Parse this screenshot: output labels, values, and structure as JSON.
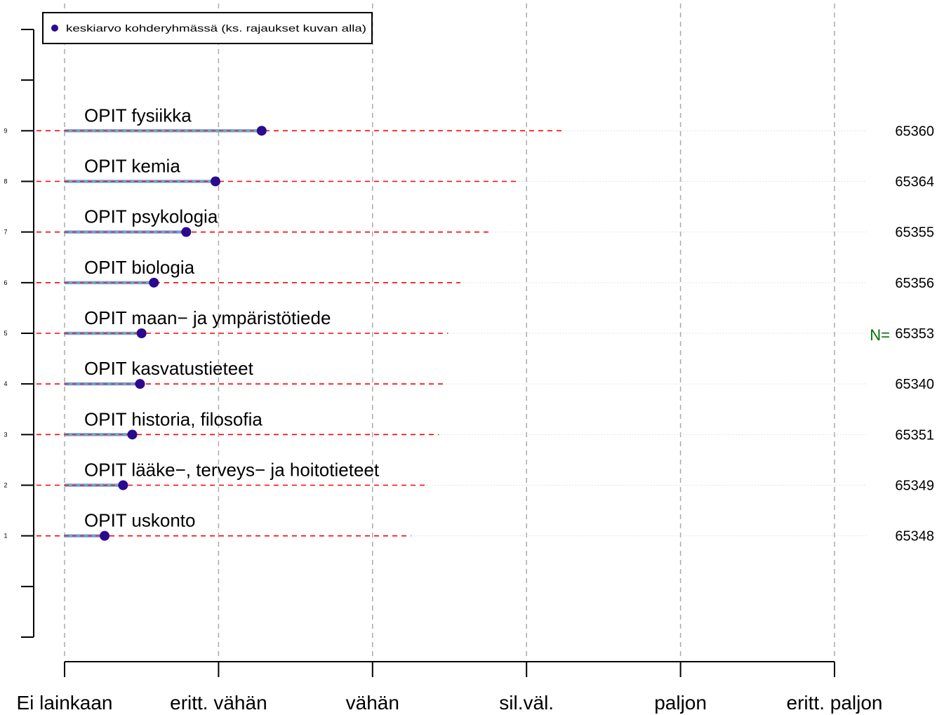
{
  "chart_data": {
    "type": "scatter",
    "legend": {
      "label": "keskiarvo kohderyhmässä (ks. rajaukset kuvan alla)",
      "position": "top-left",
      "marker_color": "#2b0a8f"
    },
    "x_axis": {
      "ticks": [
        0,
        1,
        2,
        3,
        4,
        5
      ],
      "tick_labels": [
        "Ei lainkaan",
        "eritt. vähän",
        "vähän",
        "sil.väl.",
        "paljon",
        "eritt. paljon"
      ],
      "range": [
        0,
        5
      ]
    },
    "y_axis": {
      "ticks": [
        1,
        2,
        3,
        4,
        5,
        6,
        7,
        8,
        9
      ],
      "tick_labels": [
        "1",
        "2",
        "3",
        "4",
        "5",
        "6",
        "7",
        "8",
        "9"
      ],
      "range": [
        -1,
        11
      ]
    },
    "grid": "vertical dashed",
    "n_label": "N=",
    "categories": [
      {
        "y": 9,
        "label": "OPIT fysiikka",
        "mean": 1.28,
        "range_end": 3.24,
        "n": "65360"
      },
      {
        "y": 8,
        "label": "OPIT kemia",
        "mean": 0.98,
        "range_end": 2.95,
        "n": "65364"
      },
      {
        "y": 7,
        "label": "OPIT psykologia",
        "mean": 0.79,
        "range_end": 2.78,
        "n": "65355"
      },
      {
        "y": 6,
        "label": "OPIT biologia",
        "mean": 0.58,
        "range_end": 2.57,
        "n": "65356"
      },
      {
        "y": 5,
        "label": "OPIT maan− ja ympäristötiede",
        "mean": 0.5,
        "range_end": 2.49,
        "n": "65353"
      },
      {
        "y": 4,
        "label": "OPIT kasvatustieteet",
        "mean": 0.49,
        "range_end": 2.48,
        "n": "65340"
      },
      {
        "y": 3,
        "label": "OPIT historia, filosofia",
        "mean": 0.44,
        "range_end": 2.43,
        "n": "65351"
      },
      {
        "y": 2,
        "label": "OPIT lääke−, terveys− ja hoitotieteet",
        "mean": 0.38,
        "range_end": 2.35,
        "n": "65349"
      },
      {
        "y": 1,
        "label": "OPIT uskonto",
        "mean": 0.26,
        "range_end": 2.25,
        "n": "65348"
      }
    ],
    "colors": {
      "mean_marker": "#2b0a8f",
      "mean_bar": "#6fa3d6",
      "range_line": "#ff0000",
      "grid": "#aaaaaa",
      "dotted": "#cccccc",
      "n_label": "#007000"
    }
  }
}
